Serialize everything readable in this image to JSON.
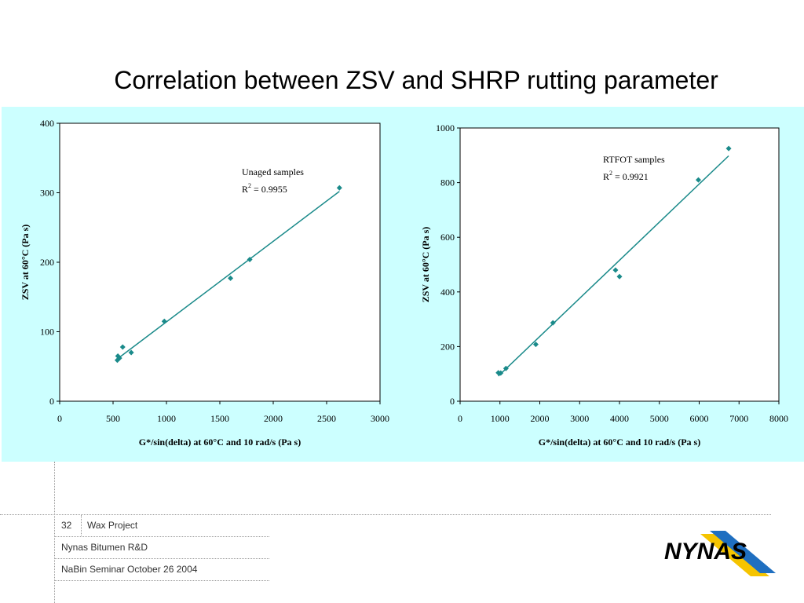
{
  "slide": {
    "title": "Correlation between ZSV and SHRP rutting parameter",
    "footer": {
      "page_number": "32",
      "project": "Wax Project",
      "org": "Nynas Bitumen R&D",
      "event": "NaBin Seminar October 26 2004"
    },
    "logo_text": "NYNAS"
  },
  "colors": {
    "panel_bg": "#ccffff",
    "series": "#1a8a8a",
    "logo_text": "#000000",
    "logo_yellow": "#f5c400",
    "logo_blue": "#1f6fc0"
  },
  "chart_data": [
    {
      "type": "scatter",
      "xlabel": "G*/sin(delta) at 60°C and 10 rad/s (Pa s)",
      "ylabel": "ZSV at 60°C (Pa s)",
      "xlim": [
        0,
        3000
      ],
      "ylim": [
        0,
        400
      ],
      "xticks": [
        0,
        500,
        1000,
        1500,
        2000,
        2500,
        3000
      ],
      "yticks": [
        0,
        100,
        200,
        300,
        400
      ],
      "annotation": {
        "line1": "Unaged samples",
        "r2_label": "R",
        "r2_sup": "2",
        "r2_value": " = 0.9955"
      },
      "series": [
        {
          "points": [
            [
              540,
              59
            ],
            [
              545,
              65
            ],
            [
              560,
              62
            ],
            [
              590,
              78
            ],
            [
              670,
              70
            ],
            [
              980,
              115
            ],
            [
              1600,
              177
            ],
            [
              1780,
              204
            ],
            [
              2620,
              307
            ]
          ]
        }
      ],
      "trendline": {
        "x": [
          550,
          2620
        ],
        "y": [
          62,
          302
        ]
      }
    },
    {
      "type": "scatter",
      "xlabel": "G*/sin(delta) at 60°C and 10 rad/s (Pa s)",
      "ylabel": "ZSV at 60°C (Pa s)",
      "xlim": [
        0,
        8000
      ],
      "ylim": [
        0,
        1000
      ],
      "xticks": [
        0,
        1000,
        2000,
        3000,
        4000,
        5000,
        6000,
        7000,
        8000
      ],
      "yticks": [
        0,
        200,
        400,
        600,
        800,
        1000
      ],
      "annotation": {
        "line1": "RTFOT samples",
        "r2_label": "R",
        "r2_sup": "2",
        "r2_value": " = 0.9921"
      },
      "series": [
        {
          "points": [
            [
              960,
              104
            ],
            [
              1020,
              103
            ],
            [
              1150,
              120
            ],
            [
              1900,
              208
            ],
            [
              2330,
              287
            ],
            [
              3900,
              480
            ],
            [
              4000,
              456
            ],
            [
              5980,
              810
            ],
            [
              6740,
              925
            ]
          ]
        }
      ],
      "trendline": {
        "x": [
          960,
          6740
        ],
        "y": [
          92,
          898
        ]
      }
    }
  ]
}
